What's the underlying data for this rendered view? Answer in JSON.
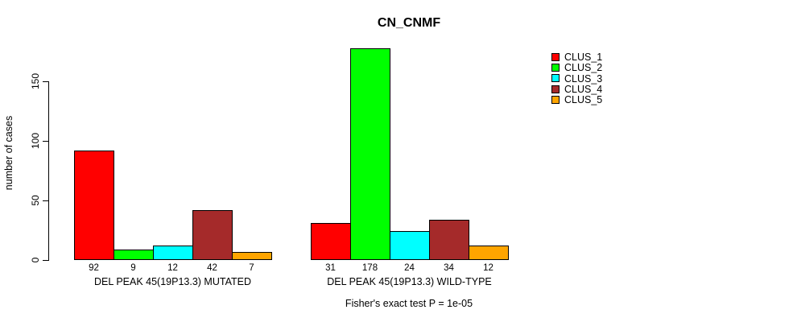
{
  "page": {
    "background": "#ffffff",
    "text_color": "#000000"
  },
  "chart_data": {
    "type": "bar",
    "title": "CN_CNMF",
    "ylabel": "number of cases",
    "xlabel": "",
    "ylim": [
      0,
      180
    ],
    "yticks": [
      0,
      50,
      100,
      150
    ],
    "grid": false,
    "legend_position": "right-outside",
    "series": [
      {
        "name": "CLUS_1",
        "color": "#FF0000"
      },
      {
        "name": "CLUS_2",
        "color": "#00FF00"
      },
      {
        "name": "CLUS_3",
        "color": "#00FFFF"
      },
      {
        "name": "CLUS_4",
        "color": "#A52A2A"
      },
      {
        "name": "CLUS_5",
        "color": "#FFA500"
      }
    ],
    "groups": [
      {
        "label": "DEL PEAK 45(19P13.3) MUTATED",
        "values": [
          92,
          9,
          12,
          42,
          7
        ]
      },
      {
        "label": "DEL PEAK 45(19P13.3) WILD-TYPE",
        "values": [
          31,
          178,
          24,
          34,
          12
        ]
      }
    ],
    "bar_value_labels": [
      [
        92,
        9,
        12,
        42,
        7
      ],
      [
        31,
        178,
        24,
        34,
        12
      ]
    ],
    "annotation": "Fisher's exact test P = 1e-05"
  }
}
